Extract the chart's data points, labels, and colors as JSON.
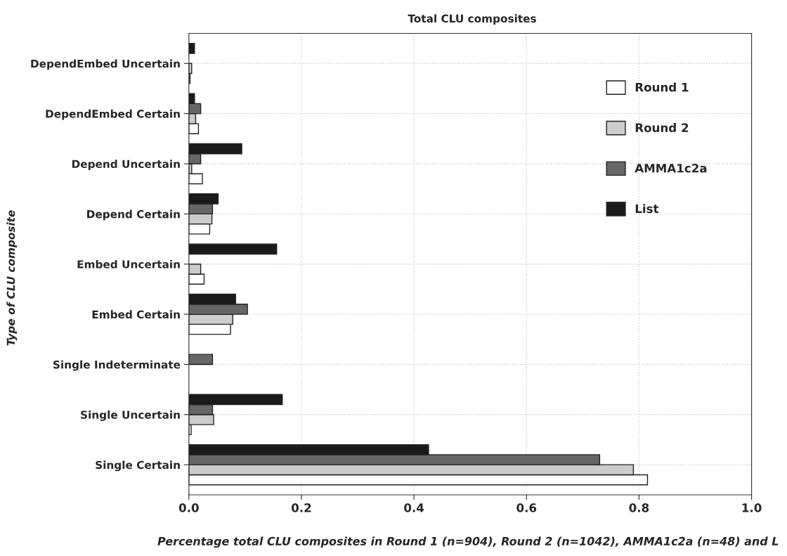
{
  "chart_data": {
    "type": "bar",
    "orientation": "horizontal",
    "title": "Total CLU composites",
    "xlabel": "Percentage total CLU composites in Round 1 (n=904), Round 2 (n=1042), AMMA1c2a (n=48) and L",
    "ylabel": "Type of CLU composite",
    "categories": [
      "DependEmbed Uncertain",
      "DependEmbed Certain",
      "Depend Uncertain",
      "Depend Certain",
      "Embed Uncertain",
      "Embed Certain",
      "Single Indeterminate",
      "Single Uncertain",
      "Single Certain"
    ],
    "series": [
      {
        "name": "Round 1",
        "color": "#ffffff",
        "values": [
          0.002,
          0.017,
          0.024,
          0.037,
          0.027,
          0.074,
          null,
          0.004,
          0.815
        ]
      },
      {
        "name": "Round 2",
        "color": "#cccccc",
        "values": [
          0.005,
          0.012,
          0.005,
          0.041,
          0.021,
          0.078,
          null,
          0.044,
          0.79
        ]
      },
      {
        "name": "AMMA1c2a",
        "color": "#666666",
        "values": [
          null,
          0.021,
          0.021,
          0.042,
          null,
          0.104,
          0.042,
          0.042,
          0.73
        ]
      },
      {
        "name": "List",
        "color": "#1a1a1a",
        "values": [
          0.01,
          0.01,
          0.094,
          0.052,
          0.156,
          0.083,
          null,
          0.166,
          0.426
        ]
      }
    ],
    "xlim": [
      0,
      1
    ],
    "xticks": [
      {
        "value": 0,
        "label": "0.0"
      },
      {
        "value": 0.2,
        "label": "0.2"
      },
      {
        "value": 0.4,
        "label": "0.4"
      },
      {
        "value": 0.6,
        "label": "0.6"
      },
      {
        "value": 0.8,
        "label": "0.8"
      },
      {
        "value": 1,
        "label": "1.0"
      }
    ],
    "grid": true,
    "legend": "top right"
  }
}
